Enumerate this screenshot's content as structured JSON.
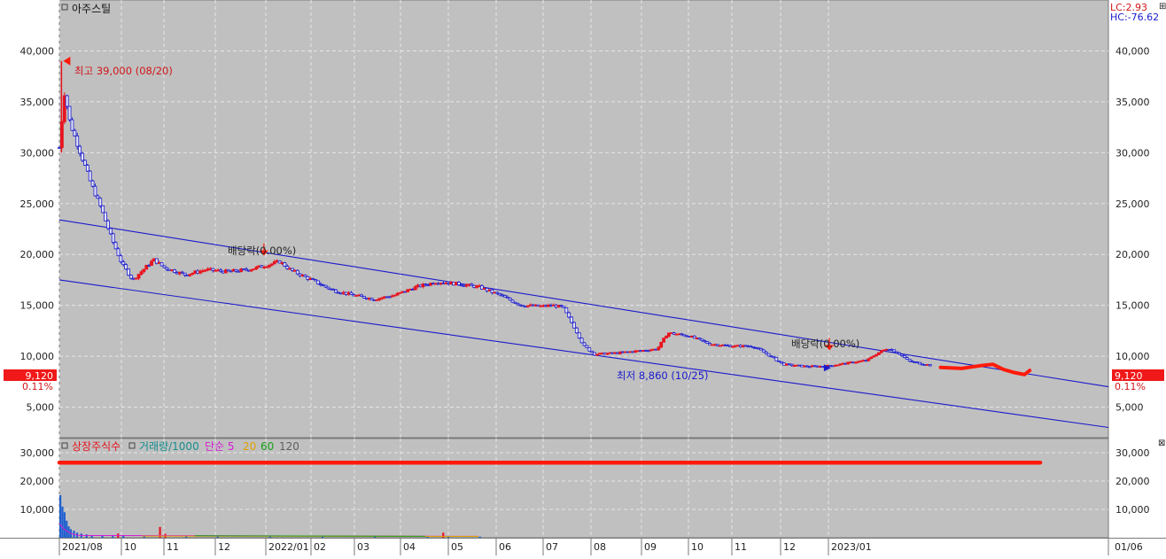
{
  "chart_data": [
    {
      "type": "candlestick",
      "title": "아주스틸",
      "y_ticks": [
        "40,000",
        "35,000",
        "30,000",
        "25,000",
        "20,000",
        "15,000",
        "10,000",
        "5,000"
      ],
      "ylim": [
        2000,
        45000
      ],
      "x_ticks": [
        "2021/08",
        "10",
        "11",
        "12",
        "2022/01",
        "02",
        "03",
        "04",
        "05",
        "06",
        "07",
        "08",
        "09",
        "10",
        "11",
        "12",
        "2023/01"
      ],
      "x_end_label": "01/06",
      "corner": {
        "lc": "LC:2.93",
        "hc": "HC:-76.62"
      },
      "current_price": {
        "value": 9120,
        "label": "9,120",
        "change": "0.11%"
      },
      "high_annotation": {
        "label": "최고 39,000 (08/20)",
        "value": 39000
      },
      "low_annotation": {
        "label": "최저 8,860 (10/25)",
        "value": 8860
      },
      "dividend_markers": [
        {
          "label": "배당락(0.00%)",
          "date": "2022/01"
        },
        {
          "label": "배당락(0.00%)",
          "date": "2022/12"
        }
      ],
      "trend_channel": {
        "upper": [
          [
            0,
            23400
          ],
          [
            1,
            7000
          ]
        ],
        "lower": [
          [
            0,
            17500
          ],
          [
            1,
            3000
          ]
        ]
      },
      "closing_path": [
        [
          0.0,
          30500
        ],
        [
          0.005,
          36000
        ],
        [
          0.01,
          33000
        ],
        [
          0.02,
          30000
        ],
        [
          0.03,
          27000
        ],
        [
          0.04,
          24500
        ],
        [
          0.05,
          21500
        ],
        [
          0.06,
          19000
        ],
        [
          0.07,
          17500
        ],
        [
          0.08,
          18500
        ],
        [
          0.09,
          19500
        ],
        [
          0.1,
          18700
        ],
        [
          0.12,
          18000
        ],
        [
          0.14,
          18500
        ],
        [
          0.16,
          18300
        ],
        [
          0.18,
          18500
        ],
        [
          0.2,
          19000
        ],
        [
          0.21,
          19300
        ],
        [
          0.22,
          18500
        ],
        [
          0.24,
          17500
        ],
        [
          0.26,
          16500
        ],
        [
          0.28,
          16000
        ],
        [
          0.3,
          15600
        ],
        [
          0.32,
          16000
        ],
        [
          0.34,
          16800
        ],
        [
          0.36,
          17300
        ],
        [
          0.38,
          17100
        ],
        [
          0.4,
          16800
        ],
        [
          0.42,
          16000
        ],
        [
          0.44,
          15000
        ],
        [
          0.46,
          14900
        ],
        [
          0.47,
          15000
        ],
        [
          0.48,
          14800
        ],
        [
          0.49,
          13000
        ],
        [
          0.5,
          11000
        ],
        [
          0.51,
          10200
        ],
        [
          0.53,
          10300
        ],
        [
          0.55,
          10500
        ],
        [
          0.57,
          10700
        ],
        [
          0.58,
          12300
        ],
        [
          0.6,
          12000
        ],
        [
          0.62,
          11200
        ],
        [
          0.64,
          11000
        ],
        [
          0.66,
          11000
        ],
        [
          0.67,
          10500
        ],
        [
          0.69,
          9200
        ],
        [
          0.71,
          9000
        ],
        [
          0.73,
          9000
        ],
        [
          0.75,
          9300
        ],
        [
          0.77,
          9600
        ],
        [
          0.78,
          10300
        ],
        [
          0.79,
          10800
        ],
        [
          0.8,
          10300
        ],
        [
          0.81,
          9500
        ],
        [
          0.82,
          9300
        ],
        [
          0.83,
          9120
        ]
      ],
      "annotation_squiggle": [
        [
          0.84,
          8900
        ],
        [
          0.86,
          8800
        ],
        [
          0.88,
          9100
        ],
        [
          0.89,
          9200
        ],
        [
          0.9,
          8700
        ],
        [
          0.91,
          8400
        ],
        [
          0.92,
          8200
        ],
        [
          0.925,
          8600
        ]
      ],
      "colors": {
        "up": "#e8141e",
        "down": "#1a1acc",
        "channel": "#1a1acc",
        "marker": "#ff1a0a"
      }
    },
    {
      "type": "bar",
      "legend": [
        {
          "label": "상장주식수",
          "color": "#e8141e"
        },
        {
          "label": "거래량/1000",
          "color": "#138e8e"
        },
        {
          "label": "단순 5",
          "color": "#d61ad6"
        },
        {
          "label": "20",
          "color": "#e0a000"
        },
        {
          "label": "60",
          "color": "#18a018"
        },
        {
          "label": "120",
          "color": "#606060"
        }
      ],
      "y_ticks": [
        "30,000",
        "20,000",
        "10,000"
      ],
      "ylim": [
        0,
        35000
      ],
      "listed_shares_line": {
        "value": 26500,
        "x_end": 0.935
      },
      "volume_bars": [
        [
          0.0,
          15000
        ],
        [
          0.002,
          11000
        ],
        [
          0.004,
          9000
        ],
        [
          0.006,
          6000
        ],
        [
          0.008,
          4000
        ],
        [
          0.01,
          3000
        ],
        [
          0.013,
          2500
        ],
        [
          0.016,
          1800
        ],
        [
          0.02,
          1500
        ],
        [
          0.025,
          1200
        ],
        [
          0.03,
          900
        ],
        [
          0.04,
          700
        ],
        [
          0.05,
          600
        ],
        [
          0.055,
          1500
        ],
        [
          0.06,
          800
        ],
        [
          0.08,
          600
        ],
        [
          0.095,
          3800
        ],
        [
          0.1,
          1400
        ],
        [
          0.12,
          500
        ],
        [
          0.15,
          600
        ],
        [
          0.2,
          500
        ],
        [
          0.25,
          400
        ],
        [
          0.3,
          500
        ],
        [
          0.35,
          400
        ],
        [
          0.365,
          1800
        ],
        [
          0.37,
          600
        ],
        [
          0.4,
          400
        ]
      ]
    }
  ]
}
